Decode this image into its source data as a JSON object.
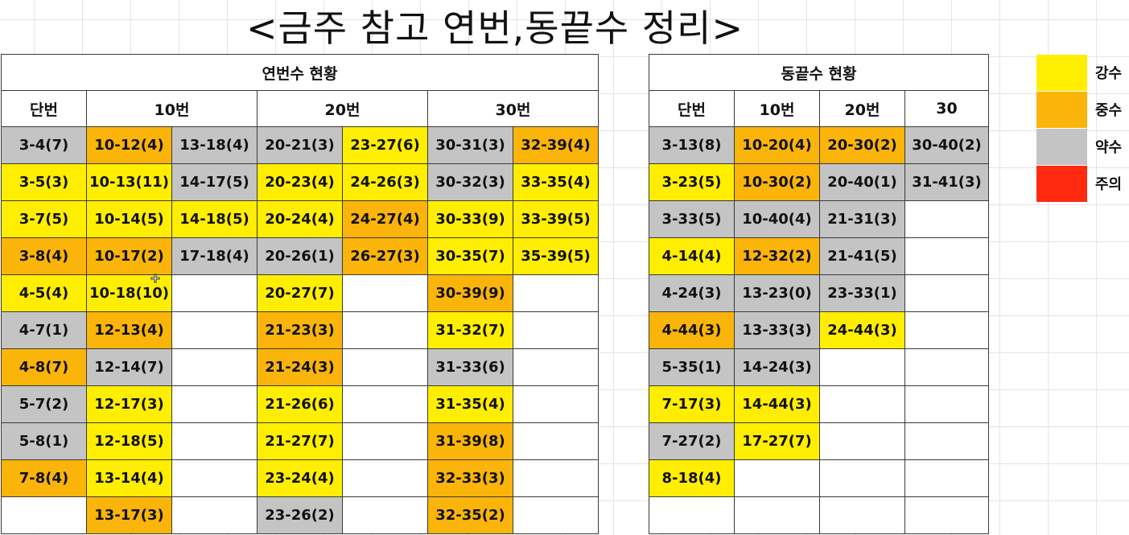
{
  "title": "<금주 참고 연번,동끝수 정리>",
  "colors": {
    "Y": "#ffee00",
    "O": "#fab40a",
    "G": "#c4c4c4",
    "R": "#ff2a10",
    "W": "#ffffff"
  },
  "left_table": {
    "caption": "연번수 현황",
    "headers": [
      "단번",
      "10번",
      "20번",
      "30번"
    ],
    "header_spans": [
      1,
      2,
      2,
      2
    ],
    "rows": [
      [
        [
          "3-4(7)",
          "G"
        ],
        [
          "10-12(4)",
          "O"
        ],
        [
          "13-18(4)",
          "G"
        ],
        [
          "20-21(3)",
          "G"
        ],
        [
          "23-27(6)",
          "Y"
        ],
        [
          "30-31(3)",
          "G"
        ],
        [
          "32-39(4)",
          "O"
        ]
      ],
      [
        [
          "3-5(3)",
          "Y"
        ],
        [
          "10-13(11)",
          "Y"
        ],
        [
          "14-17(5)",
          "G"
        ],
        [
          "20-23(4)",
          "Y"
        ],
        [
          "24-26(3)",
          "Y"
        ],
        [
          "30-32(3)",
          "G"
        ],
        [
          "33-35(4)",
          "Y"
        ]
      ],
      [
        [
          "3-7(5)",
          "Y"
        ],
        [
          "10-14(5)",
          "Y"
        ],
        [
          "14-18(5)",
          "Y"
        ],
        [
          "20-24(4)",
          "Y"
        ],
        [
          "24-27(4)",
          "O"
        ],
        [
          "30-33(9)",
          "Y"
        ],
        [
          "33-39(5)",
          "Y"
        ]
      ],
      [
        [
          "3-8(4)",
          "O"
        ],
        [
          "10-17(2)",
          "O"
        ],
        [
          "17-18(4)",
          "G"
        ],
        [
          "20-26(1)",
          "G"
        ],
        [
          "26-27(3)",
          "O"
        ],
        [
          "30-35(7)",
          "Y"
        ],
        [
          "35-39(5)",
          "Y"
        ]
      ],
      [
        [
          "4-5(4)",
          "Y"
        ],
        [
          "10-18(10)",
          "Y"
        ],
        [
          "",
          "W"
        ],
        [
          "20-27(7)",
          "Y"
        ],
        [
          "",
          "W"
        ],
        [
          "30-39(9)",
          "O"
        ],
        [
          "",
          "W"
        ]
      ],
      [
        [
          "4-7(1)",
          "G"
        ],
        [
          "12-13(4)",
          "O"
        ],
        [
          "",
          "W"
        ],
        [
          "21-23(3)",
          "O"
        ],
        [
          "",
          "W"
        ],
        [
          "31-32(7)",
          "Y"
        ],
        [
          "",
          "W"
        ]
      ],
      [
        [
          "4-8(7)",
          "O"
        ],
        [
          "12-14(7)",
          "G"
        ],
        [
          "",
          "W"
        ],
        [
          "21-24(3)",
          "O"
        ],
        [
          "",
          "W"
        ],
        [
          "31-33(6)",
          "G"
        ],
        [
          "",
          "W"
        ]
      ],
      [
        [
          "5-7(2)",
          "G"
        ],
        [
          "12-17(3)",
          "Y"
        ],
        [
          "",
          "W"
        ],
        [
          "21-26(6)",
          "Y"
        ],
        [
          "",
          "W"
        ],
        [
          "31-35(4)",
          "Y"
        ],
        [
          "",
          "W"
        ]
      ],
      [
        [
          "5-8(1)",
          "G"
        ],
        [
          "12-18(5)",
          "Y"
        ],
        [
          "",
          "W"
        ],
        [
          "21-27(7)",
          "Y"
        ],
        [
          "",
          "W"
        ],
        [
          "31-39(8)",
          "O"
        ],
        [
          "",
          "W"
        ]
      ],
      [
        [
          "7-8(4)",
          "O"
        ],
        [
          "13-14(4)",
          "Y"
        ],
        [
          "",
          "W"
        ],
        [
          "23-24(4)",
          "Y"
        ],
        [
          "",
          "W"
        ],
        [
          "32-33(3)",
          "O"
        ],
        [
          "",
          "W"
        ]
      ],
      [
        [
          "",
          "W"
        ],
        [
          "13-17(3)",
          "O"
        ],
        [
          "",
          "W"
        ],
        [
          "23-26(2)",
          "G"
        ],
        [
          "",
          "W"
        ],
        [
          "32-35(2)",
          "O"
        ],
        [
          "",
          "W"
        ]
      ]
    ]
  },
  "right_table": {
    "caption": "동끝수 현황",
    "headers": [
      "단번",
      "10번",
      "20번",
      "30"
    ],
    "header_spans": [
      1,
      1,
      1,
      1
    ],
    "rows": [
      [
        [
          "3-13(8)",
          "G"
        ],
        [
          "10-20(4)",
          "O"
        ],
        [
          "20-30(2)",
          "O"
        ],
        [
          "30-40(2)",
          "G"
        ]
      ],
      [
        [
          "3-23(5)",
          "Y"
        ],
        [
          "10-30(2)",
          "O"
        ],
        [
          "20-40(1)",
          "G"
        ],
        [
          "31-41(3)",
          "G"
        ]
      ],
      [
        [
          "3-33(5)",
          "G"
        ],
        [
          "10-40(4)",
          "G"
        ],
        [
          "21-31(3)",
          "G"
        ],
        [
          "",
          "W"
        ]
      ],
      [
        [
          "4-14(4)",
          "Y"
        ],
        [
          "12-32(2)",
          "O"
        ],
        [
          "21-41(5)",
          "G"
        ],
        [
          "",
          "W"
        ]
      ],
      [
        [
          "4-24(3)",
          "G"
        ],
        [
          "13-23(0)",
          "G"
        ],
        [
          "23-33(1)",
          "G"
        ],
        [
          "",
          "W"
        ]
      ],
      [
        [
          "4-44(3)",
          "O"
        ],
        [
          "13-33(3)",
          "G"
        ],
        [
          "24-44(3)",
          "Y"
        ],
        [
          "",
          "W"
        ]
      ],
      [
        [
          "5-35(1)",
          "G"
        ],
        [
          "14-24(3)",
          "G"
        ],
        [
          "",
          "W"
        ],
        [
          "",
          "W"
        ]
      ],
      [
        [
          "7-17(3)",
          "Y"
        ],
        [
          "14-44(3)",
          "Y"
        ],
        [
          "",
          "W"
        ],
        [
          "",
          "W"
        ]
      ],
      [
        [
          "7-27(2)",
          "G"
        ],
        [
          "17-27(7)",
          "Y"
        ],
        [
          "",
          "W"
        ],
        [
          "",
          "W"
        ]
      ],
      [
        [
          "8-18(4)",
          "Y"
        ],
        [
          "",
          "W"
        ],
        [
          "",
          "W"
        ],
        [
          "",
          "W"
        ]
      ],
      [
        [
          "",
          "W"
        ],
        [
          "",
          "W"
        ],
        [
          "",
          "W"
        ],
        [
          "",
          "W"
        ]
      ]
    ]
  },
  "legend": [
    {
      "label": "강수",
      "color": "Y"
    },
    {
      "label": "중수",
      "color": "O"
    },
    {
      "label": "약수",
      "color": "G"
    },
    {
      "label": "주의",
      "color": "R"
    }
  ]
}
